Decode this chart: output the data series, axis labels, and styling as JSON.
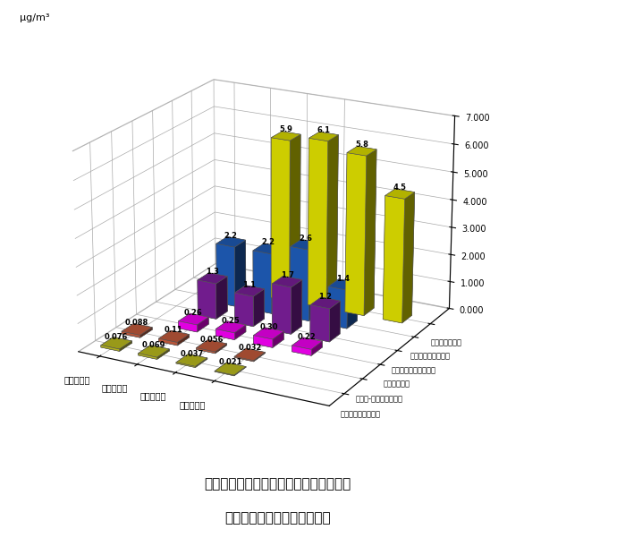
{
  "title_line1": "平成１２年度有害大気汚染物質年平均値",
  "title_line2": "（揮発性有機塩素系化合物）",
  "zlabel": "μg/m³",
  "station_labels": [
    "池上測定局",
    "大師測定局",
    "中原測定局",
    "多摩測定局"
  ],
  "compound_labels": [
    "塩化ビニルモノマー",
    "１，２-ジクロロエタン",
    "クロロホルム",
    "テトラクロロエチレン",
    "トリクロロエチレン",
    "ジクロロメタン"
  ],
  "colors": [
    "#c8c820",
    "#d06040",
    "#ff00ff",
    "#8020a0",
    "#2060c0",
    "#e8e800"
  ],
  "dark_colors": [
    "#909010",
    "#a04020",
    "#c000c0",
    "#601880",
    "#103080",
    "#a8a800"
  ],
  "data": [
    [
      0.076,
      0.088,
      0.0,
      0.0,
      0.0,
      0.0
    ],
    [
      0.069,
      0.11,
      0.26,
      1.3,
      2.2,
      0.0
    ],
    [
      0.037,
      0.056,
      0.25,
      1.1,
      2.2,
      5.9
    ],
    [
      0.021,
      0.032,
      0.3,
      1.7,
      2.6,
      6.1
    ],
    [
      0.0,
      0.0,
      0.22,
      1.2,
      1.4,
      5.8
    ],
    [
      0.0,
      0.0,
      0.0,
      0.0,
      0.0,
      4.5
    ]
  ],
  "bar_labels": [
    [
      "0.076",
      "0.088",
      "",
      "",
      "",
      ""
    ],
    [
      "0.069",
      "0.11",
      "0.26",
      "1.3",
      "2.2",
      ""
    ],
    [
      "0.037",
      "0.056",
      "0.25",
      "1.1",
      "2.2",
      "5.9"
    ],
    [
      "0.021",
      "0.032",
      "0.30",
      "1.7",
      "2.6",
      "6.1"
    ],
    [
      "",
      "",
      "0.22",
      "1.2",
      "1.4",
      "5.8"
    ],
    [
      "",
      "",
      "",
      "",
      "",
      "4.5"
    ]
  ],
  "ytick_labels": [
    "0.000",
    "1.000",
    "2.000",
    "3.000",
    "4.000",
    "5.000",
    "6.000",
    "7.000"
  ],
  "bar_width": 0.7,
  "bar_depth": 0.6,
  "elev": 20,
  "azim": -62
}
